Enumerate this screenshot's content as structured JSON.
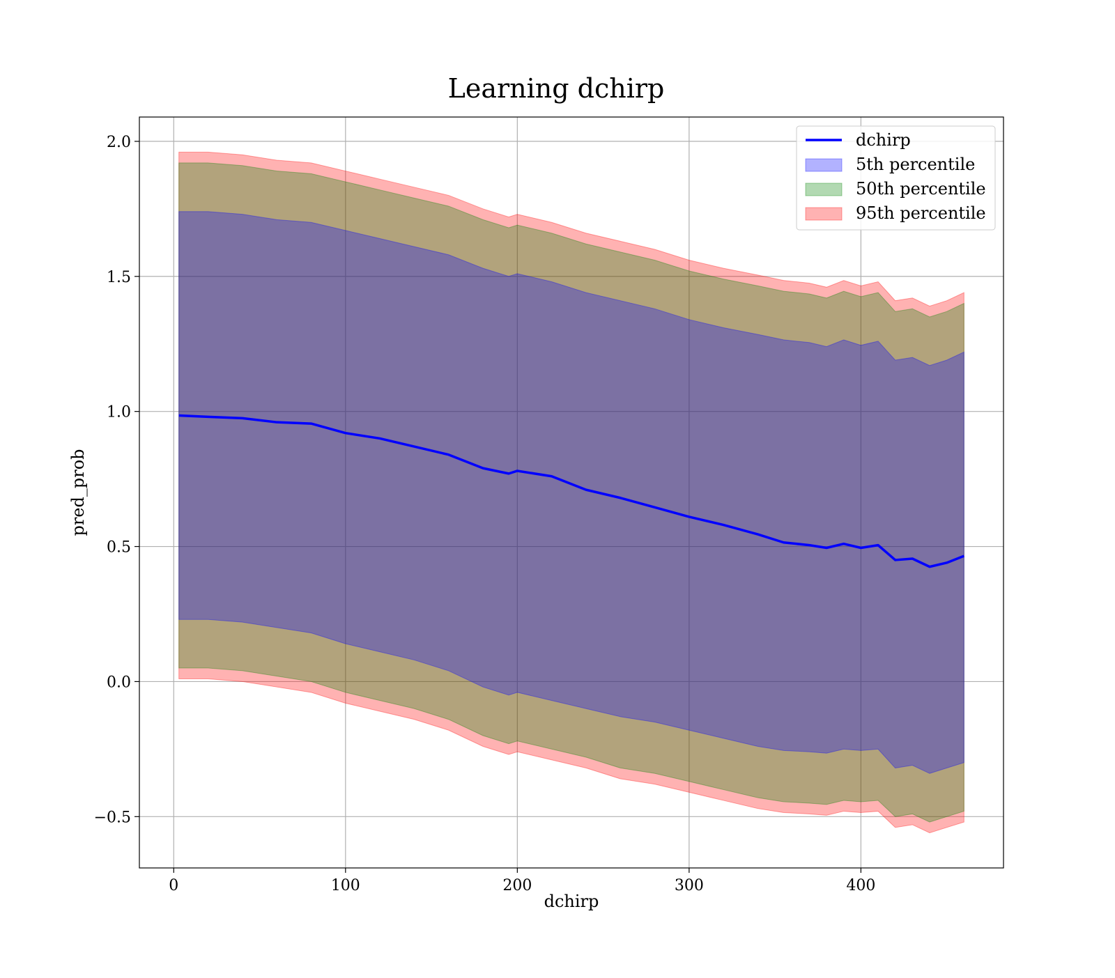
{
  "chart_data": {
    "type": "area",
    "title": "Learning dchirp",
    "xlabel": "dchirp",
    "ylabel": "pred_prob",
    "xlim": [
      -20,
      483
    ],
    "ylim": [
      -0.69,
      2.09
    ],
    "x_ticks": [
      0,
      100,
      200,
      300,
      400
    ],
    "x_tick_labels": [
      "0",
      "100",
      "200",
      "300",
      "400"
    ],
    "y_ticks": [
      -0.5,
      0.0,
      0.5,
      1.0,
      1.5,
      2.0
    ],
    "y_tick_labels": [
      "−0.5",
      "0.0",
      "0.5",
      "1.0",
      "1.5",
      "2.0"
    ],
    "grid": true,
    "legend_position": "top-right",
    "x": [
      3,
      20,
      40,
      60,
      80,
      100,
      120,
      140,
      160,
      180,
      195,
      200,
      220,
      240,
      260,
      280,
      300,
      320,
      340,
      355,
      370,
      380,
      390,
      400,
      410,
      420,
      430,
      440,
      450,
      460
    ],
    "series": [
      {
        "name": "dchirp",
        "kind": "line",
        "color": "#0000ff",
        "values": [
          0.985,
          0.98,
          0.975,
          0.96,
          0.955,
          0.92,
          0.9,
          0.87,
          0.84,
          0.79,
          0.77,
          0.78,
          0.76,
          0.71,
          0.68,
          0.645,
          0.61,
          0.58,
          0.545,
          0.515,
          0.505,
          0.495,
          0.51,
          0.495,
          0.505,
          0.45,
          0.455,
          0.425,
          0.44,
          0.465
        ]
      },
      {
        "name": "5th percentile",
        "kind": "band",
        "color": "#0000ff",
        "lower": [
          0.23,
          0.23,
          0.22,
          0.2,
          0.18,
          0.14,
          0.11,
          0.08,
          0.04,
          -0.02,
          -0.05,
          -0.04,
          -0.07,
          -0.1,
          -0.13,
          -0.15,
          -0.18,
          -0.21,
          -0.24,
          -0.255,
          -0.26,
          -0.265,
          -0.25,
          -0.255,
          -0.25,
          -0.32,
          -0.31,
          -0.34,
          -0.32,
          -0.3
        ],
        "upper": [
          1.74,
          1.74,
          1.73,
          1.71,
          1.7,
          1.67,
          1.64,
          1.61,
          1.58,
          1.53,
          1.5,
          1.51,
          1.48,
          1.44,
          1.41,
          1.38,
          1.34,
          1.31,
          1.285,
          1.265,
          1.255,
          1.24,
          1.265,
          1.245,
          1.26,
          1.19,
          1.2,
          1.17,
          1.19,
          1.22
        ]
      },
      {
        "name": "50th percentile",
        "kind": "band",
        "color": "#008000",
        "lower": [
          0.05,
          0.05,
          0.04,
          0.02,
          0.0,
          -0.04,
          -0.07,
          -0.1,
          -0.14,
          -0.2,
          -0.23,
          -0.22,
          -0.25,
          -0.28,
          -0.32,
          -0.34,
          -0.37,
          -0.4,
          -0.43,
          -0.445,
          -0.45,
          -0.455,
          -0.44,
          -0.445,
          -0.44,
          -0.5,
          -0.49,
          -0.52,
          -0.5,
          -0.48
        ],
        "upper": [
          1.92,
          1.92,
          1.91,
          1.89,
          1.88,
          1.85,
          1.82,
          1.79,
          1.76,
          1.71,
          1.68,
          1.69,
          1.66,
          1.62,
          1.59,
          1.56,
          1.52,
          1.49,
          1.465,
          1.445,
          1.435,
          1.42,
          1.445,
          1.425,
          1.44,
          1.37,
          1.38,
          1.35,
          1.37,
          1.4
        ]
      },
      {
        "name": "95th percentile",
        "kind": "band",
        "color": "#ff0000",
        "lower": [
          0.01,
          0.01,
          0.0,
          -0.02,
          -0.04,
          -0.08,
          -0.11,
          -0.14,
          -0.18,
          -0.24,
          -0.27,
          -0.26,
          -0.29,
          -0.32,
          -0.36,
          -0.38,
          -0.41,
          -0.44,
          -0.47,
          -0.485,
          -0.49,
          -0.495,
          -0.48,
          -0.485,
          -0.48,
          -0.54,
          -0.53,
          -0.56,
          -0.54,
          -0.52
        ],
        "upper": [
          1.96,
          1.96,
          1.95,
          1.93,
          1.92,
          1.89,
          1.86,
          1.83,
          1.8,
          1.75,
          1.72,
          1.73,
          1.7,
          1.66,
          1.63,
          1.6,
          1.56,
          1.53,
          1.505,
          1.485,
          1.475,
          1.46,
          1.485,
          1.465,
          1.48,
          1.41,
          1.42,
          1.39,
          1.41,
          1.44
        ]
      }
    ]
  }
}
